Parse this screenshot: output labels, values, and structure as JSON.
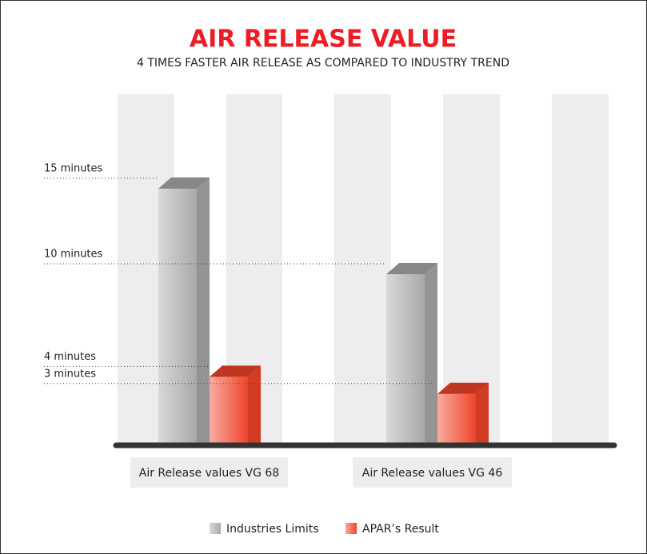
{
  "chart_data": {
    "type": "bar3d",
    "title": "AIR RELEASE VALUE",
    "subtitle": "4 TIMES FASTER AIR RELEASE AS COMPARED TO INDUSTRY TREND",
    "categories": [
      "Air Release values VG 68",
      "Air Release values VG 46"
    ],
    "series": [
      {
        "name": "Industries Limits",
        "color": "#a9a9a9",
        "values": [
          15,
          10
        ],
        "value_labels": [
          "15 minutes",
          "10 minutes"
        ]
      },
      {
        "name": "APAR’s Result",
        "color": "#f0452a",
        "values": [
          4,
          3
        ],
        "value_labels": [
          "4 minutes",
          "3 minutes"
        ]
      }
    ]
  }
}
